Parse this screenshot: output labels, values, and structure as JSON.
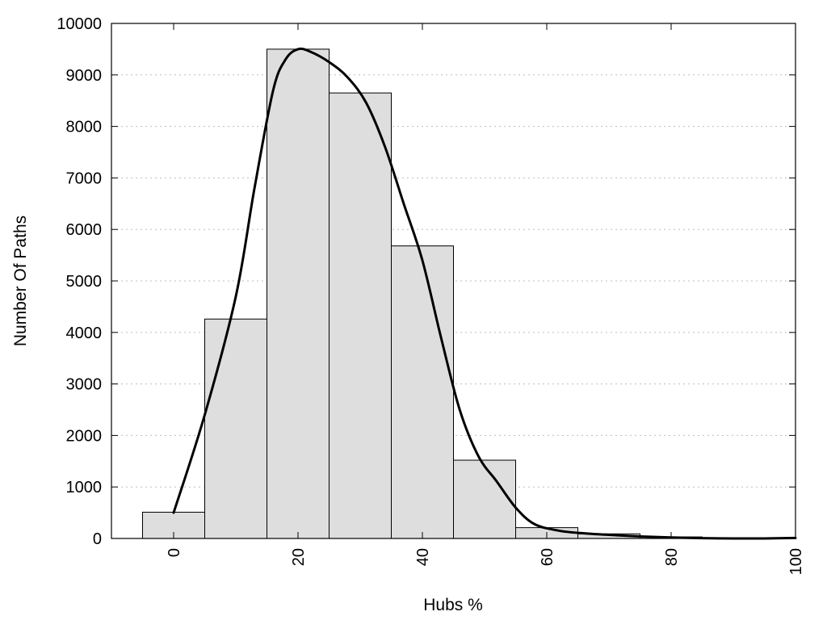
{
  "chart_data": {
    "type": "bar",
    "title": "",
    "xlabel": "Hubs %",
    "ylabel": "Number Of Paths",
    "xlim": [
      -10,
      100
    ],
    "ylim": [
      0,
      10000
    ],
    "x_ticks": [
      0,
      20,
      40,
      60,
      80,
      100
    ],
    "y_ticks": [
      0,
      1000,
      2000,
      3000,
      4000,
      5000,
      6000,
      7000,
      8000,
      9000,
      10000
    ],
    "x_tick_rotation": -90,
    "grid": "horizontal-dotted",
    "bar_color": "#dedede",
    "bin_width": 10,
    "bins": [
      {
        "center": 0,
        "value": 510
      },
      {
        "center": 10,
        "value": 4260
      },
      {
        "center": 20,
        "value": 9500
      },
      {
        "center": 30,
        "value": 8650
      },
      {
        "center": 40,
        "value": 5680
      },
      {
        "center": 50,
        "value": 1520
      },
      {
        "center": 60,
        "value": 210
      },
      {
        "center": 70,
        "value": 90
      },
      {
        "center": 80,
        "value": 30
      },
      {
        "center": 90,
        "value": 15
      },
      {
        "center": 100,
        "value": 10
      }
    ],
    "density_curve": [
      {
        "x": 0,
        "y": 500
      },
      {
        "x": 5,
        "y": 2400
      },
      {
        "x": 10,
        "y": 4700
      },
      {
        "x": 13,
        "y": 6800
      },
      {
        "x": 16,
        "y": 8700
      },
      {
        "x": 18,
        "y": 9300
      },
      {
        "x": 20,
        "y": 9500
      },
      {
        "x": 22,
        "y": 9450
      },
      {
        "x": 25,
        "y": 9250
      },
      {
        "x": 28,
        "y": 8950
      },
      {
        "x": 31,
        "y": 8450
      },
      {
        "x": 34,
        "y": 7600
      },
      {
        "x": 37,
        "y": 6500
      },
      {
        "x": 40,
        "y": 5400
      },
      {
        "x": 43,
        "y": 3900
      },
      {
        "x": 46,
        "y": 2500
      },
      {
        "x": 49,
        "y": 1600
      },
      {
        "x": 52,
        "y": 1100
      },
      {
        "x": 55,
        "y": 600
      },
      {
        "x": 58,
        "y": 280
      },
      {
        "x": 62,
        "y": 150
      },
      {
        "x": 66,
        "y": 100
      },
      {
        "x": 70,
        "y": 70
      },
      {
        "x": 75,
        "y": 40
      },
      {
        "x": 80,
        "y": 20
      },
      {
        "x": 85,
        "y": 5
      },
      {
        "x": 90,
        "y": 0
      },
      {
        "x": 95,
        "y": 0
      },
      {
        "x": 100,
        "y": 10
      }
    ]
  }
}
